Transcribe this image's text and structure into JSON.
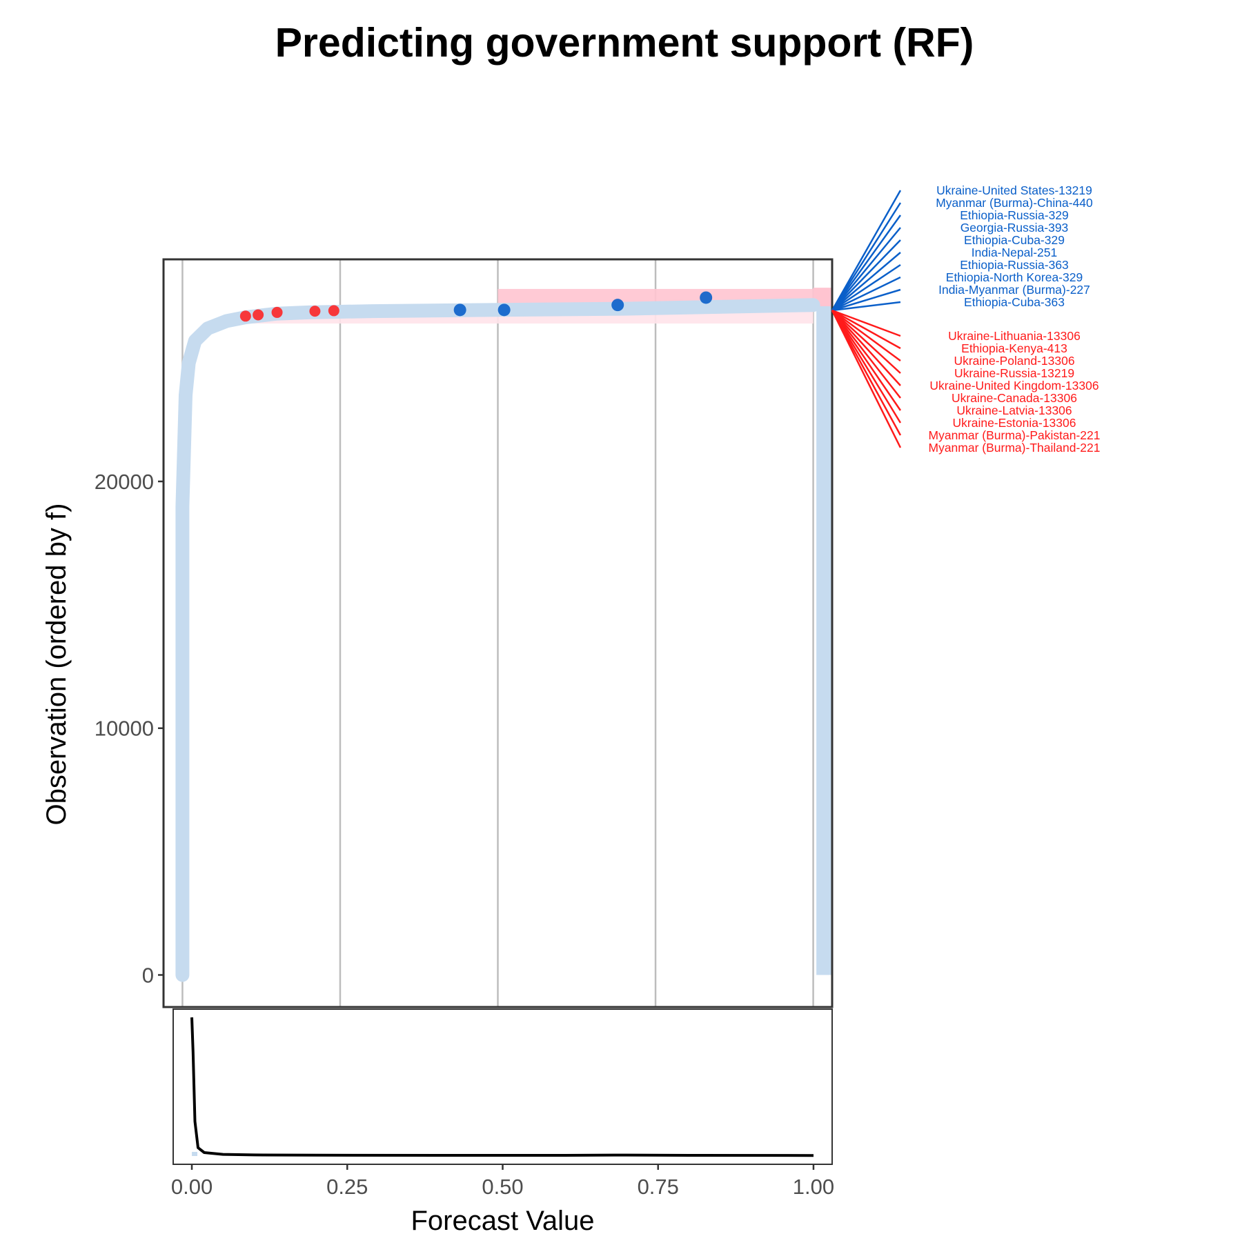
{
  "chart_data": {
    "type": "scatter",
    "title": "Predicting government support (RF)",
    "xlabel": "Forecast Value",
    "ylabel": "Observation (ordered by f)",
    "xlim": [
      -0.03,
      1.03
    ],
    "ylim": [
      -1300,
      29000
    ],
    "x_ticks": [
      "0.00",
      "0.25",
      "0.50",
      "0.75",
      "1.00"
    ],
    "x_tick_values": [
      0,
      0.25,
      0.5,
      0.75,
      1.0
    ],
    "y_ticks": [
      "0",
      "10000",
      "20000"
    ],
    "y_tick_values": [
      0,
      10000,
      20000
    ],
    "grid": "vertical",
    "colors": {
      "light_blue": "#c6dbef",
      "blue": "#0a5fc9",
      "red": "#ff1a1a",
      "pink": "#ffc4d0"
    },
    "curve": {
      "name": "",
      "x": [
        0,
        0,
        0.005,
        0.01,
        0.02,
        0.04,
        0.07,
        0.1,
        0.15,
        0.2,
        0.3,
        0.5,
        0.7,
        1.0
      ],
      "y": [
        0,
        19000,
        23500,
        24800,
        25700,
        26200,
        26500,
        26650,
        26800,
        26850,
        26900,
        26950,
        27000,
        27150
      ]
    },
    "highlight_points_blue": [
      {
        "x": 0.44,
        "y": 26950
      },
      {
        "x": 0.51,
        "y": 26950
      },
      {
        "x": 0.69,
        "y": 27150
      },
      {
        "x": 0.83,
        "y": 27450
      }
    ],
    "highlight_points_red": [
      {
        "x": 0.1,
        "y": 26700
      },
      {
        "x": 0.12,
        "y": 26750
      },
      {
        "x": 0.15,
        "y": 26850
      },
      {
        "x": 0.21,
        "y": 26900
      },
      {
        "x": 0.24,
        "y": 26920
      }
    ],
    "labels_blue": [
      "Ukraine-United States-13219",
      "Myanmar (Burma)-China-440",
      "Ethiopia-Russia-329",
      "Georgia-Russia-393",
      "Ethiopia-Cuba-329",
      "India-Nepal-251",
      "Ethiopia-Russia-363",
      "Ethiopia-North Korea-329",
      "India-Myanmar (Burma)-227",
      "Ethiopia-Cuba-363"
    ],
    "labels_red": [
      "Ukraine-Lithuania-13306",
      "Ethiopia-Kenya-413",
      "Ukraine-Poland-13306",
      "Ukraine-Russia-13219",
      "Ukraine-United Kingdom-13306",
      "Ukraine-Canada-13306",
      "Ukraine-Latvia-13306",
      "Ukraine-Estonia-13306",
      "Myanmar (Burma)-Pakistan-221",
      "Myanmar (Burma)-Thailand-221"
    ],
    "density": {
      "x": [
        0,
        0.002,
        0.005,
        0.01,
        0.02,
        0.05,
        0.1,
        0.2,
        0.4,
        0.6,
        0.7,
        0.8,
        1.0
      ],
      "y": [
        1.0,
        0.75,
        0.25,
        0.06,
        0.025,
        0.012,
        0.008,
        0.006,
        0.005,
        0.005,
        0.007,
        0.005,
        0.004
      ]
    }
  }
}
